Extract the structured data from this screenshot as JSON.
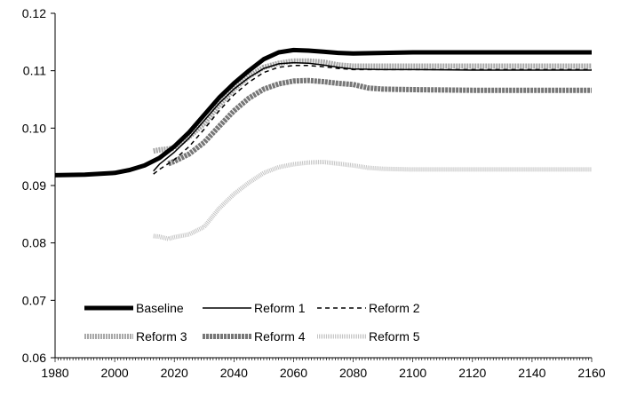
{
  "chart_data": {
    "type": "line",
    "title": "",
    "xlabel": "",
    "ylabel": "",
    "xlim": [
      1980,
      2160
    ],
    "ylim": [
      0.06,
      0.12
    ],
    "grid": false,
    "legend_position": "bottom-left",
    "x_ticks": [
      1980,
      2000,
      2020,
      2040,
      2060,
      2080,
      2100,
      2120,
      2140,
      2160
    ],
    "x_tick_labels": [
      "1980",
      "2000",
      "2020",
      "2040",
      "2060",
      "2080",
      "2100",
      "2120",
      "2140",
      "2160"
    ],
    "y_ticks": [
      0.06,
      0.07,
      0.08,
      0.09,
      0.1,
      0.11,
      0.12
    ],
    "y_tick_labels": [
      "0.06",
      "0.07",
      "0.08",
      "0.09",
      "0.10",
      "0.11",
      "0.12"
    ],
    "series": [
      {
        "name": "Baseline",
        "style": "thick-solid",
        "color": "#000000",
        "x": [
          1980,
          1990,
          2000,
          2005,
          2010,
          2015,
          2020,
          2025,
          2030,
          2035,
          2040,
          2045,
          2050,
          2055,
          2060,
          2065,
          2070,
          2075,
          2080,
          2090,
          2100,
          2120,
          2140,
          2160
        ],
        "y": [
          0.0918,
          0.0919,
          0.0922,
          0.0927,
          0.0935,
          0.0948,
          0.0968,
          0.0993,
          0.1023,
          0.1053,
          0.1078,
          0.11,
          0.112,
          0.1132,
          0.1136,
          0.1135,
          0.1133,
          0.1131,
          0.113,
          0.1131,
          0.1132,
          0.1132,
          0.1132,
          0.1132
        ]
      },
      {
        "name": "Reform 1",
        "style": "thin-solid",
        "color": "#000000",
        "x": [
          2013,
          2015,
          2020,
          2025,
          2030,
          2035,
          2040,
          2045,
          2050,
          2055,
          2060,
          2065,
          2070,
          2075,
          2080,
          2090,
          2100,
          2120,
          2140,
          2160
        ],
        "y": [
          0.0925,
          0.0937,
          0.0958,
          0.0983,
          0.1013,
          0.1043,
          0.1068,
          0.1088,
          0.1104,
          0.1112,
          0.1114,
          0.1113,
          0.111,
          0.1106,
          0.1103,
          0.1102,
          0.1102,
          0.1101,
          0.1101,
          0.1101
        ]
      },
      {
        "name": "Reform 2",
        "style": "dashed",
        "color": "#000000",
        "x": [
          2013,
          2015,
          2020,
          2025,
          2030,
          2035,
          2040,
          2045,
          2050,
          2055,
          2060,
          2065,
          2070,
          2075,
          2080,
          2090,
          2100,
          2120,
          2140,
          2160
        ],
        "y": [
          0.092,
          0.0928,
          0.0945,
          0.0968,
          0.0998,
          0.103,
          0.1058,
          0.108,
          0.1097,
          0.1106,
          0.1109,
          0.1109,
          0.1107,
          0.1104,
          0.1102,
          0.1102,
          0.1102,
          0.1102,
          0.1102,
          0.1102
        ]
      },
      {
        "name": "Reform 3",
        "style": "thick-dotted-gray",
        "color": "#9a9a9a",
        "x": [
          2013,
          2015,
          2020,
          2025,
          2030,
          2035,
          2040,
          2045,
          2050,
          2055,
          2060,
          2065,
          2070,
          2075,
          2080,
          2090,
          2100,
          2120,
          2140,
          2160
        ],
        "y": [
          0.096,
          0.0962,
          0.0965,
          0.0985,
          0.1008,
          0.104,
          0.1068,
          0.109,
          0.1106,
          0.1113,
          0.1117,
          0.1117,
          0.1115,
          0.111,
          0.1108,
          0.1108,
          0.1108,
          0.1108,
          0.1108,
          0.1108
        ]
      },
      {
        "name": "Reform 4",
        "style": "thick-dark-gray",
        "color": "#6e6e6e",
        "x": [
          2018,
          2020,
          2025,
          2030,
          2035,
          2040,
          2045,
          2050,
          2055,
          2060,
          2065,
          2070,
          2075,
          2080,
          2085,
          2090,
          2100,
          2120,
          2140,
          2160
        ],
        "y": [
          0.0938,
          0.0942,
          0.0955,
          0.0975,
          0.1003,
          0.103,
          0.1052,
          0.1068,
          0.1077,
          0.1082,
          0.1083,
          0.1081,
          0.1078,
          0.1076,
          0.107,
          0.1068,
          0.1067,
          0.1066,
          0.1066,
          0.1066
        ]
      },
      {
        "name": "Reform 5",
        "style": "thick-light-dotted",
        "color": "#bdbdbd",
        "x": [
          2013,
          2015,
          2018,
          2020,
          2025,
          2030,
          2035,
          2040,
          2045,
          2050,
          2055,
          2060,
          2065,
          2070,
          2075,
          2080,
          2085,
          2090,
          2100,
          2120,
          2140,
          2160
        ],
        "y": [
          0.0812,
          0.0811,
          0.0807,
          0.081,
          0.0815,
          0.0828,
          0.086,
          0.0885,
          0.0905,
          0.0922,
          0.0932,
          0.0937,
          0.094,
          0.0941,
          0.0938,
          0.0935,
          0.0931,
          0.0929,
          0.0928,
          0.0928,
          0.0928,
          0.0928
        ]
      }
    ]
  },
  "legend": {
    "items": [
      {
        "label": "Baseline",
        "style": "thick-solid"
      },
      {
        "label": "Reform 1",
        "style": "thin-solid"
      },
      {
        "label": "Reform 2",
        "style": "dashed"
      },
      {
        "label": "Reform 3",
        "style": "thick-dotted-gray"
      },
      {
        "label": "Reform 4",
        "style": "thick-dark-gray"
      },
      {
        "label": "Reform 5",
        "style": "thick-light-dotted"
      }
    ]
  },
  "colors": {
    "axis": "#000000",
    "background": "#ffffff"
  }
}
